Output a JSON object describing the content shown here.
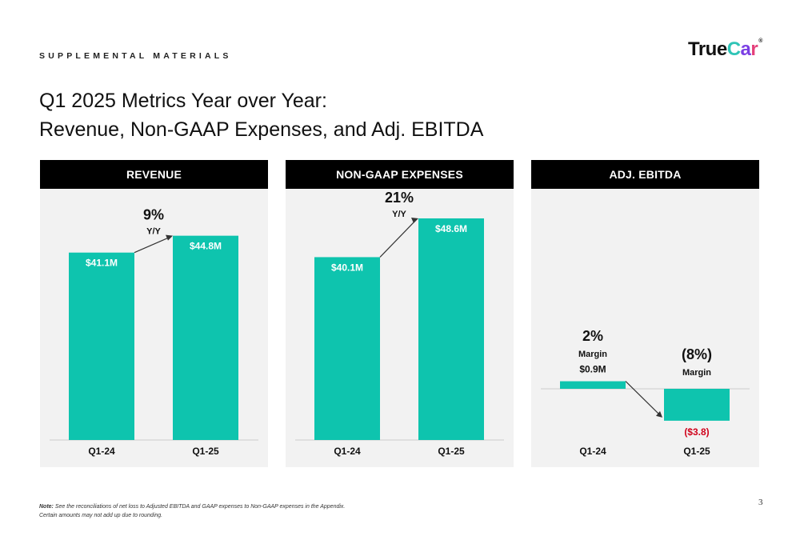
{
  "header": {
    "supplemental": "SUPPLEMENTAL MATERIALS",
    "logo_main": "True",
    "logo_c": "C",
    "logo_a": "a",
    "logo_r": "r",
    "logo_reg": "®"
  },
  "title": {
    "line1": "Q1 2025 Metrics Year over Year:",
    "line2": "Revenue, Non-GAAP Expenses, and Adj. EBITDA"
  },
  "colors": {
    "bar": "#0ec4ae",
    "negative_label": "#d0021b",
    "header_bg": "#000000",
    "panel_bg": "#f2f2f2"
  },
  "chart_data": [
    {
      "type": "bar",
      "title": "REVENUE",
      "categories": [
        "Q1-24",
        "Q1-25"
      ],
      "values": [
        41.1,
        44.8
      ],
      "value_labels": [
        "$41.1M",
        "$44.8M"
      ],
      "change": {
        "value": "9%",
        "label": "Y/Y"
      }
    },
    {
      "type": "bar",
      "title": "NON-GAAP EXPENSES",
      "categories": [
        "Q1-24",
        "Q1-25"
      ],
      "values": [
        40.1,
        48.6
      ],
      "value_labels": [
        "$40.1M",
        "$48.6M"
      ],
      "change": {
        "value": "21%",
        "label": "Y/Y"
      }
    },
    {
      "type": "bar",
      "title": "ADJ. EBITDA",
      "categories": [
        "Q1-24",
        "Q1-25"
      ],
      "values": [
        0.9,
        -3.8
      ],
      "value_labels": [
        "$0.9M",
        "($3.8)"
      ],
      "margins": [
        {
          "value": "2%",
          "label": "Margin"
        },
        {
          "value": "(8%)",
          "label": "Margin"
        }
      ]
    }
  ],
  "footer": {
    "note_label": "Note:",
    "note_line1": "See the reconciliations of net loss to Adjusted EBITDA and GAAP expenses to Non-GAAP expenses in the Appendix.",
    "note_line2": "Certain amounts may not add up due to rounding.",
    "page_number": "3"
  }
}
